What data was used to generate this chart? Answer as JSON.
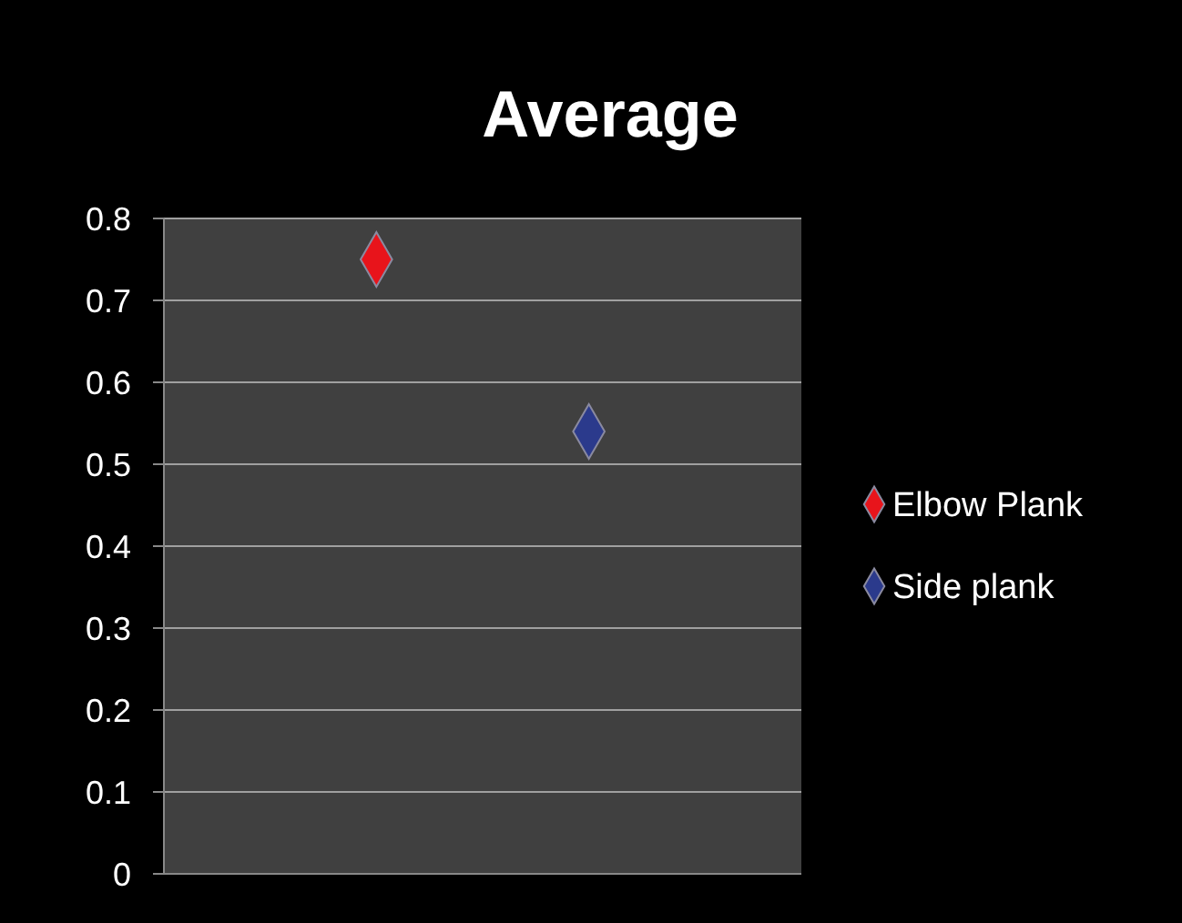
{
  "chart_data": {
    "type": "scatter",
    "title": "Average",
    "categories": [
      null,
      null
    ],
    "series": [
      {
        "name": "Elbow Plank",
        "color": "#e8141b",
        "values": [
          0.75,
          null
        ]
      },
      {
        "name": "Side plank",
        "color": "#2b3a8c",
        "values": [
          null,
          0.54
        ]
      }
    ],
    "ylim": [
      0,
      0.8
    ],
    "yticks": [
      0,
      0.1,
      0.2,
      0.3,
      0.4,
      0.5,
      0.6,
      0.7,
      0.8
    ],
    "grid": "y",
    "legend": "right",
    "marker": "diamond"
  }
}
